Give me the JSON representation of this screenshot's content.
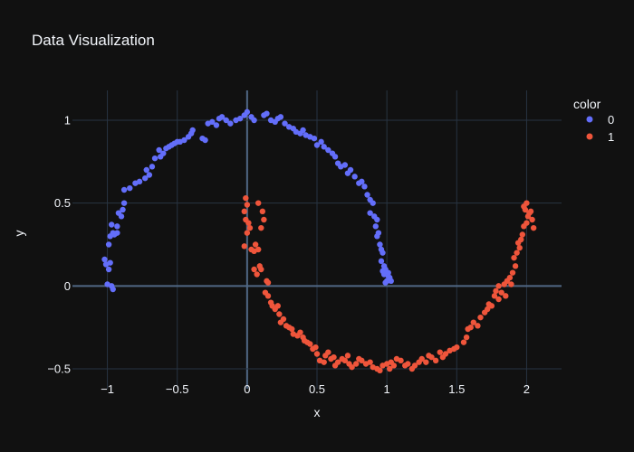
{
  "chart_data": {
    "type": "scatter",
    "title": "Data Visualization",
    "xlabel": "x",
    "ylabel": "y",
    "xlim": [
      -1.25,
      2.25
    ],
    "ylim": [
      -0.62,
      1.18
    ],
    "x_ticks": [
      -1,
      -0.5,
      0,
      0.5,
      1,
      1.5,
      2
    ],
    "x_tick_labels": [
      "−1",
      "−0.5",
      "0",
      "0.5",
      "1",
      "1.5",
      "2"
    ],
    "y_ticks": [
      -0.5,
      0,
      0.5,
      1
    ],
    "y_tick_labels": [
      "−0.5",
      "0",
      "0.5",
      "1"
    ],
    "grid": true,
    "legend_title": "color",
    "legend_position": "top-right",
    "background_color": "#111111",
    "grid_color": "#283442",
    "series": [
      {
        "name": "0",
        "color": "#636efa",
        "points": [
          [
            -1.02,
            0.16
          ],
          [
            -1.01,
            0.13
          ],
          [
            -0.99,
            0.1
          ],
          [
            -0.98,
            0.14
          ],
          [
            -1.0,
            0.01
          ],
          [
            -0.97,
            0.0
          ],
          [
            -0.96,
            -0.02
          ],
          [
            -0.99,
            0.25
          ],
          [
            -0.98,
            0.3
          ],
          [
            -0.96,
            0.32
          ],
          [
            -0.95,
            0.31
          ],
          [
            -0.93,
            0.32
          ],
          [
            -0.97,
            0.37
          ],
          [
            -0.93,
            0.36
          ],
          [
            -0.92,
            0.44
          ],
          [
            -0.9,
            0.42
          ],
          [
            -0.89,
            0.46
          ],
          [
            -0.88,
            0.5
          ],
          [
            -0.88,
            0.58
          ],
          [
            -0.84,
            0.59
          ],
          [
            -0.8,
            0.62
          ],
          [
            -0.77,
            0.63
          ],
          [
            -0.73,
            0.65
          ],
          [
            -0.72,
            0.7
          ],
          [
            -0.7,
            0.67
          ],
          [
            -0.68,
            0.72
          ],
          [
            -0.66,
            0.77
          ],
          [
            -0.62,
            0.78
          ],
          [
            -0.63,
            0.82
          ],
          [
            -0.6,
            0.8
          ],
          [
            -0.58,
            0.83
          ],
          [
            -0.56,
            0.84
          ],
          [
            -0.54,
            0.85
          ],
          [
            -0.52,
            0.86
          ],
          [
            -0.5,
            0.87
          ],
          [
            -0.48,
            0.87
          ],
          [
            -0.45,
            0.88
          ],
          [
            -0.42,
            0.9
          ],
          [
            -0.4,
            0.92
          ],
          [
            -0.39,
            0.94
          ],
          [
            -0.32,
            0.89
          ],
          [
            -0.3,
            0.88
          ],
          [
            -0.28,
            0.98
          ],
          [
            -0.25,
            0.99
          ],
          [
            -0.22,
            0.97
          ],
          [
            -0.2,
            1.01
          ],
          [
            -0.18,
            1.02
          ],
          [
            -0.15,
            1.0
          ],
          [
            -0.12,
            0.98
          ],
          [
            -0.08,
            1.0
          ],
          [
            -0.05,
            1.01
          ],
          [
            -0.02,
            1.03
          ],
          [
            0.0,
            1.05
          ],
          [
            0.03,
            1.02
          ],
          [
            0.05,
            1.0
          ],
          [
            0.12,
            1.03
          ],
          [
            0.14,
            1.04
          ],
          [
            0.17,
            1.0
          ],
          [
            0.2,
            0.99
          ],
          [
            0.22,
            1.01
          ],
          [
            0.24,
            1.02
          ],
          [
            0.27,
            0.98
          ],
          [
            0.3,
            0.96
          ],
          [
            0.33,
            0.95
          ],
          [
            0.35,
            0.93
          ],
          [
            0.38,
            0.92
          ],
          [
            0.4,
            0.94
          ],
          [
            0.42,
            0.91
          ],
          [
            0.45,
            0.9
          ],
          [
            0.48,
            0.89
          ],
          [
            0.5,
            0.85
          ],
          [
            0.53,
            0.87
          ],
          [
            0.55,
            0.84
          ],
          [
            0.58,
            0.82
          ],
          [
            0.61,
            0.8
          ],
          [
            0.63,
            0.78
          ],
          [
            0.65,
            0.74
          ],
          [
            0.67,
            0.72
          ],
          [
            0.7,
            0.73
          ],
          [
            0.72,
            0.68
          ],
          [
            0.74,
            0.7
          ],
          [
            0.77,
            0.66
          ],
          [
            0.8,
            0.62
          ],
          [
            0.82,
            0.63
          ],
          [
            0.84,
            0.6
          ],
          [
            0.86,
            0.55
          ],
          [
            0.88,
            0.52
          ],
          [
            0.9,
            0.5
          ],
          [
            0.88,
            0.44
          ],
          [
            0.91,
            0.42
          ],
          [
            0.93,
            0.4
          ],
          [
            0.92,
            0.36
          ],
          [
            0.94,
            0.32
          ],
          [
            0.93,
            0.3
          ],
          [
            0.95,
            0.25
          ],
          [
            0.96,
            0.22
          ],
          [
            0.97,
            0.2
          ],
          [
            0.96,
            0.15
          ],
          [
            0.98,
            0.12
          ],
          [
            0.99,
            0.1
          ],
          [
            1.0,
            0.08
          ],
          [
            0.98,
            0.07
          ],
          [
            1.01,
            0.06
          ],
          [
            1.02,
            0.05
          ],
          [
            1.0,
            0.03
          ],
          [
            0.99,
            0.02
          ],
          [
            1.03,
            0.03
          ],
          [
            1.01,
            0.08
          ],
          [
            0.97,
            0.09
          ]
        ]
      },
      {
        "name": "1",
        "color": "#ef553b",
        "points": [
          [
            -0.01,
            0.53
          ],
          [
            0.0,
            0.49
          ],
          [
            -0.02,
            0.45
          ],
          [
            -0.01,
            0.4
          ],
          [
            0.01,
            0.38
          ],
          [
            0.02,
            0.35
          ],
          [
            0.0,
            0.32
          ],
          [
            -0.02,
            0.24
          ],
          [
            0.03,
            0.22
          ],
          [
            0.05,
            0.21
          ],
          [
            0.06,
            0.25
          ],
          [
            0.08,
            0.22
          ],
          [
            0.05,
            0.1
          ],
          [
            0.07,
            0.07
          ],
          [
            0.09,
            0.12
          ],
          [
            0.1,
            0.1
          ],
          [
            0.08,
            0.5
          ],
          [
            0.11,
            0.45
          ],
          [
            0.12,
            0.4
          ],
          [
            0.1,
            0.35
          ],
          [
            0.14,
            0.03
          ],
          [
            0.15,
            0.02
          ],
          [
            0.13,
            -0.04
          ],
          [
            0.15,
            -0.06
          ],
          [
            0.17,
            -0.1
          ],
          [
            0.18,
            -0.12
          ],
          [
            0.2,
            -0.14
          ],
          [
            0.22,
            -0.12
          ],
          [
            0.23,
            -0.17
          ],
          [
            0.24,
            -0.22
          ],
          [
            0.26,
            -0.2
          ],
          [
            0.28,
            -0.24
          ],
          [
            0.3,
            -0.25
          ],
          [
            0.32,
            -0.26
          ],
          [
            0.33,
            -0.29
          ],
          [
            0.36,
            -0.3
          ],
          [
            0.38,
            -0.28
          ],
          [
            0.4,
            -0.31
          ],
          [
            0.41,
            -0.33
          ],
          [
            0.43,
            -0.34
          ],
          [
            0.45,
            -0.35
          ],
          [
            0.47,
            -0.38
          ],
          [
            0.49,
            -0.37
          ],
          [
            0.5,
            -0.41
          ],
          [
            0.52,
            -0.45
          ],
          [
            0.55,
            -0.46
          ],
          [
            0.56,
            -0.42
          ],
          [
            0.58,
            -0.4
          ],
          [
            0.6,
            -0.44
          ],
          [
            0.62,
            -0.43
          ],
          [
            0.63,
            -0.48
          ],
          [
            0.65,
            -0.46
          ],
          [
            0.68,
            -0.44
          ],
          [
            0.7,
            -0.45
          ],
          [
            0.72,
            -0.42
          ],
          [
            0.73,
            -0.47
          ],
          [
            0.75,
            -0.49
          ],
          [
            0.78,
            -0.47
          ],
          [
            0.8,
            -0.44
          ],
          [
            0.82,
            -0.45
          ],
          [
            0.85,
            -0.47
          ],
          [
            0.88,
            -0.46
          ],
          [
            0.9,
            -0.49
          ],
          [
            0.93,
            -0.5
          ],
          [
            0.95,
            -0.51
          ],
          [
            0.97,
            -0.48
          ],
          [
            1.0,
            -0.47
          ],
          [
            1.02,
            -0.5
          ],
          [
            1.03,
            -0.46
          ],
          [
            1.05,
            -0.48
          ],
          [
            1.07,
            -0.44
          ],
          [
            1.1,
            -0.45
          ],
          [
            1.13,
            -0.48
          ],
          [
            1.15,
            -0.47
          ],
          [
            1.18,
            -0.5
          ],
          [
            1.2,
            -0.48
          ],
          [
            1.23,
            -0.46
          ],
          [
            1.25,
            -0.44
          ],
          [
            1.28,
            -0.46
          ],
          [
            1.3,
            -0.42
          ],
          [
            1.32,
            -0.43
          ],
          [
            1.35,
            -0.45
          ],
          [
            1.38,
            -0.4
          ],
          [
            1.4,
            -0.43
          ],
          [
            1.42,
            -0.41
          ],
          [
            1.45,
            -0.39
          ],
          [
            1.48,
            -0.38
          ],
          [
            1.5,
            -0.37
          ],
          [
            1.55,
            -0.34
          ],
          [
            1.57,
            -0.31
          ],
          [
            1.58,
            -0.26
          ],
          [
            1.6,
            -0.25
          ],
          [
            1.62,
            -0.22
          ],
          [
            1.65,
            -0.24
          ],
          [
            1.67,
            -0.19
          ],
          [
            1.7,
            -0.16
          ],
          [
            1.72,
            -0.14
          ],
          [
            1.73,
            -0.11
          ],
          [
            1.75,
            -0.12
          ],
          [
            1.77,
            -0.06
          ],
          [
            1.78,
            -0.03
          ],
          [
            1.8,
            0.0
          ],
          [
            1.82,
            -0.04
          ],
          [
            1.84,
            0.01
          ],
          [
            1.86,
            0.03
          ],
          [
            1.88,
            0.05
          ],
          [
            1.9,
            0.08
          ],
          [
            1.92,
            0.12
          ],
          [
            1.91,
            0.17
          ],
          [
            1.93,
            0.2
          ],
          [
            1.95,
            0.23
          ],
          [
            1.96,
            0.28
          ],
          [
            1.97,
            0.31
          ],
          [
            1.98,
            0.36
          ],
          [
            2.0,
            0.38
          ],
          [
            2.01,
            0.42
          ],
          [
            1.99,
            0.46
          ],
          [
            2.02,
            0.44
          ],
          [
            2.0,
            0.5
          ],
          [
            1.98,
            0.48
          ],
          [
            2.03,
            0.45
          ],
          [
            2.05,
            0.35
          ],
          [
            2.04,
            0.4
          ],
          [
            1.94,
            0.26
          ],
          [
            1.89,
            0.01
          ],
          [
            1.85,
            -0.06
          ],
          [
            1.8,
            -0.08
          ]
        ]
      }
    ]
  }
}
